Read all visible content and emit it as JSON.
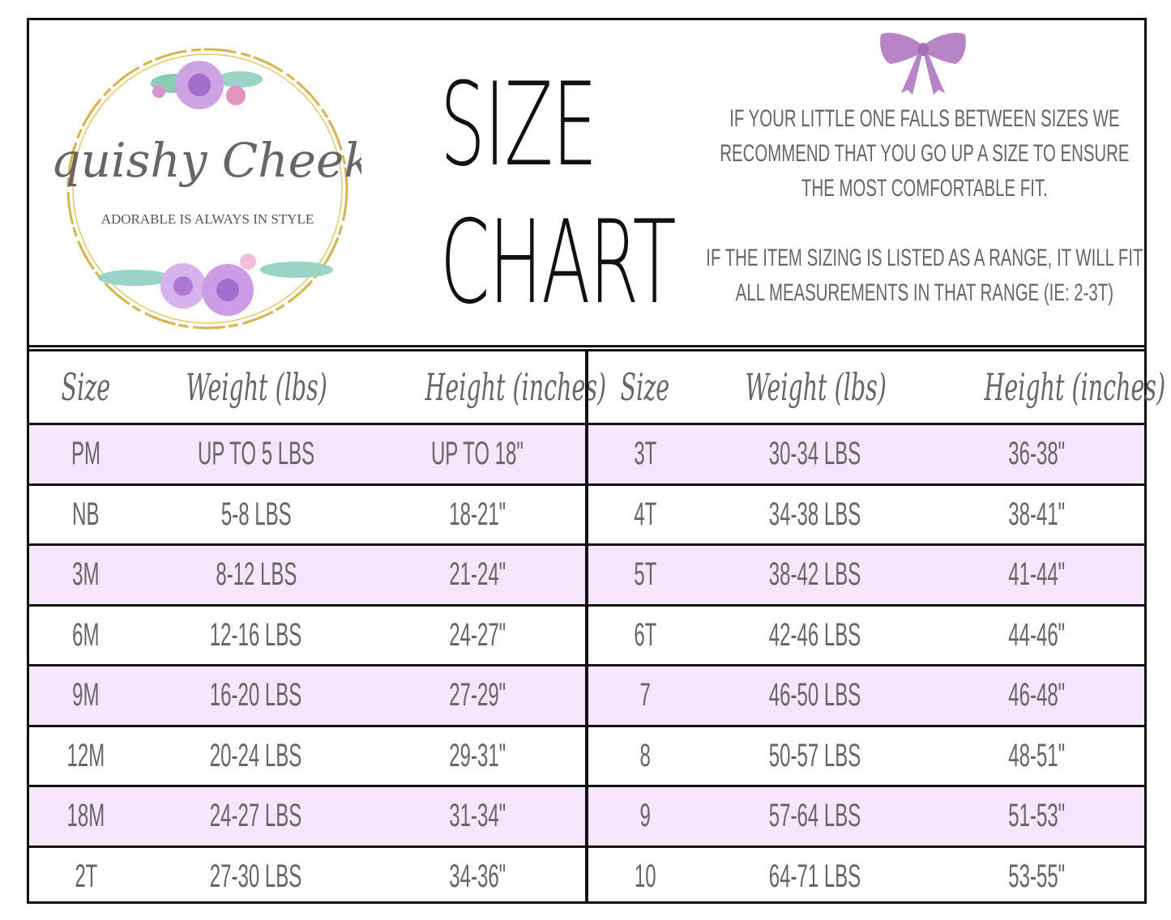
{
  "brand": {
    "name": "Squishy Cheeks",
    "tagline": "ADORABLE IS ALWAYS IN STYLE"
  },
  "title": {
    "line1": "SIZE",
    "line2": "CHART"
  },
  "notes": [
    "IF YOUR LITTLE ONE FALLS BETWEEN SIZES WE RECOMMEND THAT YOU GO UP A SIZE TO ENSURE THE MOST COMFORTABLE FIT.",
    "IF THE ITEM SIZING IS LISTED AS A RANGE, IT WILL FIT ALL MEASUREMENTS IN THAT RANGE (IE: 2-3T)"
  ],
  "icons": {
    "bow": "bow-icon",
    "logo": "floral-wreath-logo"
  },
  "colors": {
    "shade": "#f5e6fc",
    "bow": "#b784c8",
    "ring": "#d9b24a",
    "text": "#666666"
  },
  "headers": {
    "size": "Size",
    "weight": "Weight (lbs)",
    "height": "Height (inches)"
  },
  "left_rows": [
    {
      "size": "PM",
      "weight": "UP TO 5 LBS",
      "height": "UP TO 18\""
    },
    {
      "size": "NB",
      "weight": "5-8 LBS",
      "height": "18-21\""
    },
    {
      "size": "3M",
      "weight": "8-12 LBS",
      "height": "21-24\""
    },
    {
      "size": "6M",
      "weight": "12-16 LBS",
      "height": "24-27\""
    },
    {
      "size": "9M",
      "weight": "16-20 LBS",
      "height": "27-29\""
    },
    {
      "size": "12M",
      "weight": "20-24 LBS",
      "height": "29-31\""
    },
    {
      "size": "18M",
      "weight": "24-27 LBS",
      "height": "31-34\""
    },
    {
      "size": "2T",
      "weight": "27-30 LBS",
      "height": "34-36\""
    }
  ],
  "right_rows": [
    {
      "size": "3T",
      "weight": "30-34 LBS",
      "height": "36-38\""
    },
    {
      "size": "4T",
      "weight": "34-38 LBS",
      "height": "38-41\""
    },
    {
      "size": "5T",
      "weight": "38-42 LBS",
      "height": "41-44\""
    },
    {
      "size": "6T",
      "weight": "42-46 LBS",
      "height": "44-46\""
    },
    {
      "size": "7",
      "weight": "46-50 LBS",
      "height": "46-48\""
    },
    {
      "size": "8",
      "weight": "50-57 LBS",
      "height": "48-51\""
    },
    {
      "size": "9",
      "weight": "57-64 LBS",
      "height": "51-53\""
    },
    {
      "size": "10",
      "weight": "64-71 LBS",
      "height": "53-55\""
    }
  ]
}
